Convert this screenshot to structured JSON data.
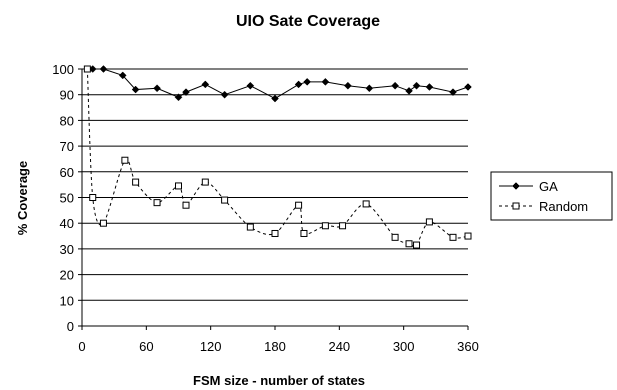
{
  "chart_data": {
    "type": "line",
    "title": "UIO Sate Coverage",
    "xlabel": "FSM size - number of states",
    "ylabel": "% Coverage",
    "xlim": [
      0,
      360
    ],
    "ylim": [
      0,
      100
    ],
    "x_ticks": [
      0,
      60,
      120,
      180,
      240,
      300,
      360
    ],
    "y_ticks": [
      0,
      10,
      20,
      30,
      40,
      50,
      60,
      70,
      80,
      90,
      100
    ],
    "grid": "horizontal",
    "legend_position": "right",
    "series": [
      {
        "name": "GA",
        "marker": "diamond",
        "line": "solid",
        "color": "#000000",
        "points": [
          [
            5,
            100
          ],
          [
            10,
            100
          ],
          [
            20,
            100
          ],
          [
            38,
            97.5
          ],
          [
            50,
            92
          ],
          [
            70,
            92.5
          ],
          [
            90,
            89
          ],
          [
            97,
            91
          ],
          [
            115,
            94
          ],
          [
            133,
            90
          ],
          [
            157,
            93.5
          ],
          [
            180,
            88.5
          ],
          [
            202,
            94
          ],
          [
            210,
            95
          ],
          [
            227,
            95
          ],
          [
            248,
            93.5
          ],
          [
            268,
            92.5
          ],
          [
            292,
            93.5
          ],
          [
            305,
            91.5
          ],
          [
            312,
            93.5
          ],
          [
            324,
            93
          ],
          [
            346,
            91
          ],
          [
            360,
            93
          ]
        ]
      },
      {
        "name": "Random",
        "marker": "square",
        "line": "dashed",
        "color": "#000000",
        "points": [
          [
            5,
            100
          ],
          [
            10,
            50
          ],
          [
            20,
            40
          ],
          [
            40,
            64.5
          ],
          [
            50,
            56
          ],
          [
            70,
            48
          ],
          [
            90,
            54.5
          ],
          [
            97,
            47
          ],
          [
            115,
            56
          ],
          [
            133,
            49
          ],
          [
            157,
            38.5
          ],
          [
            180,
            36
          ],
          [
            202,
            47
          ],
          [
            207,
            36
          ],
          [
            227,
            39
          ],
          [
            243,
            39
          ],
          [
            265,
            47.5
          ],
          [
            292,
            34.5
          ],
          [
            305,
            32
          ],
          [
            312,
            31.5
          ],
          [
            324,
            40.5
          ],
          [
            346,
            34.5
          ],
          [
            360,
            35
          ]
        ]
      }
    ]
  }
}
